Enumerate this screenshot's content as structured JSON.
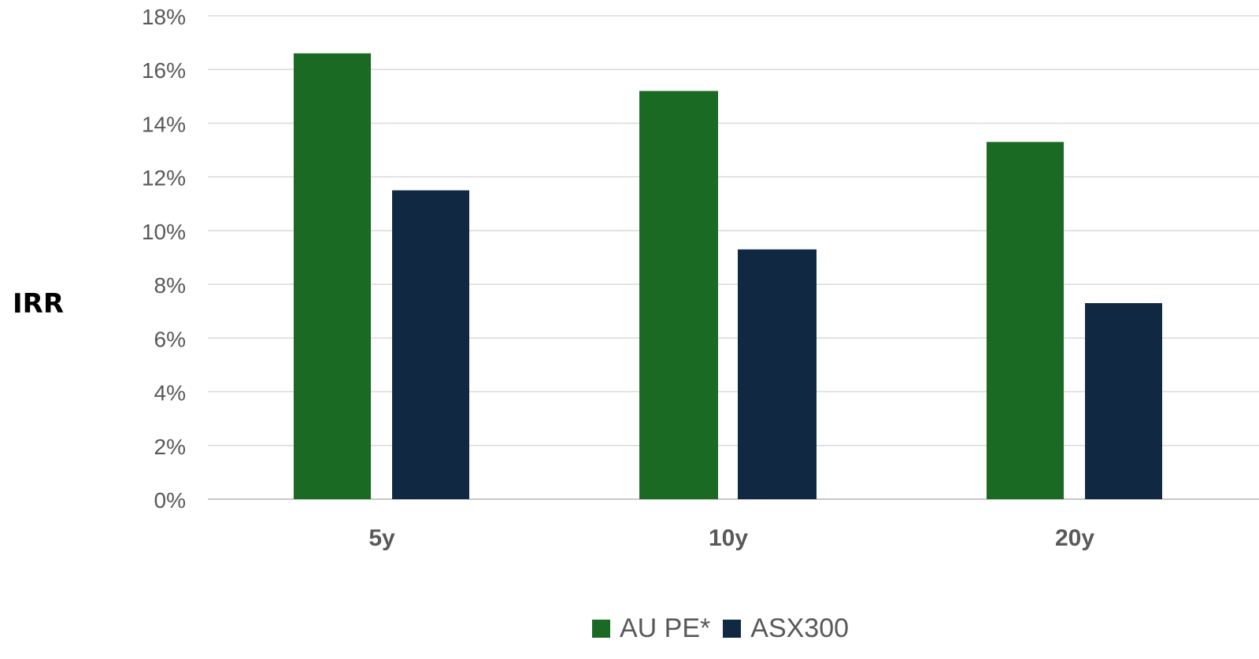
{
  "chart_data": {
    "type": "bar",
    "categories": [
      "5y",
      "10y",
      "20y"
    ],
    "series": [
      {
        "name": "AU PE*",
        "color": "#1b6a24",
        "values": [
          16.6,
          15.2,
          13.3
        ]
      },
      {
        "name": "ASX300",
        "color": "#112843",
        "values": [
          11.5,
          9.3,
          7.3
        ]
      }
    ],
    "title": "",
    "xlabel": "",
    "ylabel": "IRR",
    "ylim": [
      0,
      18
    ],
    "yticks": [
      0,
      2,
      4,
      6,
      8,
      10,
      12,
      14,
      16,
      18
    ],
    "ytick_labels": [
      "0%",
      "2%",
      "4%",
      "6%",
      "8%",
      "10%",
      "12%",
      "14%",
      "16%",
      "18%"
    ],
    "grid": true,
    "legend_position": "bottom"
  }
}
